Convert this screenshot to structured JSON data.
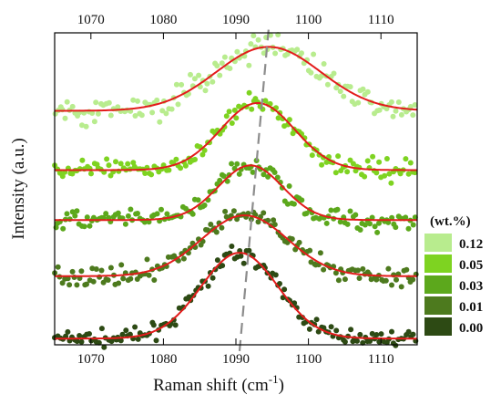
{
  "chart_data": {
    "type": "scatter",
    "title": "",
    "xlabel": "Raman shift (cm",
    "xlabel_sup": "-1",
    "xlabel_end": ")",
    "ylabel": "Intensity (a.u.)",
    "xlim": [
      1065,
      1115
    ],
    "x_ticks": [
      1070,
      1080,
      1090,
      1100,
      1110
    ],
    "top_ticks": [
      1070,
      1080,
      1090,
      1100,
      1110
    ],
    "y_ticks_shown": false,
    "grid": false,
    "legend_title": "(wt.%)",
    "legend_position": "right",
    "fit_color": "#e31b1b",
    "guide_line": {
      "style": "dashed",
      "color": "#8c8c8c",
      "from": [
        1090.5,
        -0.02
      ],
      "to": [
        1094.5,
        1.01
      ]
    },
    "series": [
      {
        "name": "0.00",
        "color": "#2d4a14",
        "peak_center": 1090.5,
        "fwhm": 12.5,
        "peak_amplitude": 0.275,
        "baseline": 0.02,
        "noise": 0.012
      },
      {
        "name": "0.01",
        "color": "#4d7a1e",
        "peak_center": 1091.2,
        "fwhm": 14.0,
        "peak_amplitude": 0.195,
        "baseline": 0.22,
        "noise": 0.014
      },
      {
        "name": "0.03",
        "color": "#5ca81c",
        "peak_center": 1092.0,
        "fwhm": 10.5,
        "peak_amplitude": 0.175,
        "baseline": 0.4,
        "noise": 0.016
      },
      {
        "name": "0.05",
        "color": "#7ed321",
        "peak_center": 1093.0,
        "fwhm": 12.0,
        "peak_amplitude": 0.215,
        "baseline": 0.56,
        "noise": 0.016
      },
      {
        "name": "0.12",
        "color": "#b8ec8e",
        "peak_center": 1094.5,
        "fwhm": 17.0,
        "peak_amplitude": 0.205,
        "baseline": 0.75,
        "noise": 0.022
      }
    ]
  }
}
